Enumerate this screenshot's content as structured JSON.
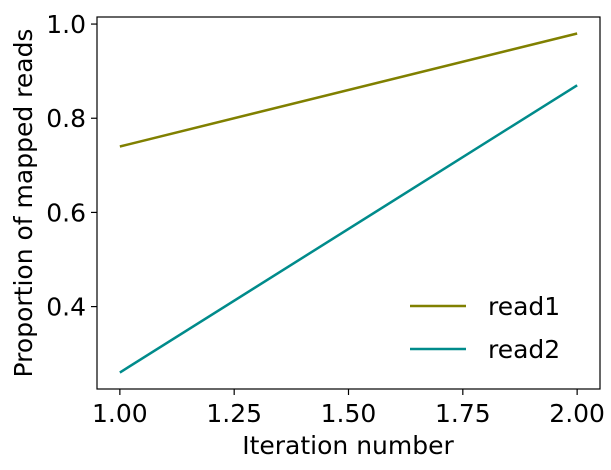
{
  "chart_data": {
    "type": "line",
    "x": [
      1.0,
      2.0
    ],
    "series": [
      {
        "name": "read1",
        "values": [
          0.74,
          0.98
        ],
        "color": "#808000"
      },
      {
        "name": "read2",
        "values": [
          0.26,
          0.87
        ],
        "color": "#008b8b"
      }
    ],
    "xlabel": "Iteration number",
    "ylabel": "Proportion of mapped reads",
    "xlim": [
      0.95,
      2.05
    ],
    "ylim": [
      0.225,
      1.015
    ],
    "xticks": [
      1.0,
      1.25,
      1.5,
      1.75,
      2.0
    ],
    "xtick_labels": [
      "1.00",
      "1.25",
      "1.50",
      "1.75",
      "2.00"
    ],
    "yticks": [
      0.4,
      0.6,
      0.8,
      1.0
    ],
    "ytick_labels": [
      "0.4",
      "0.6",
      "0.8",
      "1.0"
    ],
    "grid": false,
    "legend_position": "bottom-right"
  }
}
